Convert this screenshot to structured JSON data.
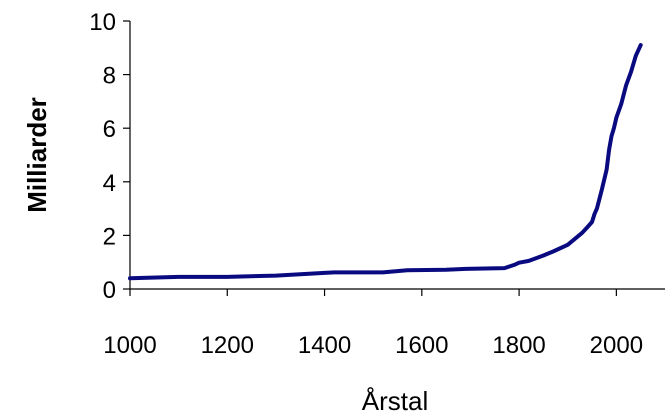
{
  "chart_data": {
    "type": "line",
    "title": "",
    "xlabel": "Årstal",
    "ylabel": "Milliarder",
    "xlim": [
      1000,
      2100
    ],
    "ylim": [
      0,
      10
    ],
    "xticks": [
      1000,
      1200,
      1400,
      1600,
      1800,
      2000
    ],
    "yticks": [
      0,
      2,
      4,
      6,
      8,
      10
    ],
    "grid": false,
    "legend": "none",
    "line_color": "#0a0a80",
    "series": [
      {
        "x": [
          1000,
          1100,
          1200,
          1300,
          1400,
          1420,
          1520,
          1570,
          1650,
          1690,
          1770,
          1790,
          1800,
          1820,
          1850,
          1870,
          1900,
          1920,
          1930,
          1940,
          1950,
          1955,
          1960,
          1970,
          1980,
          1985,
          1990,
          1995,
          2000,
          2010,
          2020,
          2030,
          2040,
          2050
        ],
        "y": [
          0.4,
          0.45,
          0.45,
          0.5,
          0.6,
          0.62,
          0.62,
          0.7,
          0.72,
          0.75,
          0.78,
          0.9,
          0.98,
          1.05,
          1.25,
          1.4,
          1.65,
          1.95,
          2.1,
          2.3,
          2.5,
          2.8,
          3.0,
          3.7,
          4.45,
          5.2,
          5.7,
          6.0,
          6.4,
          6.9,
          7.6,
          8.1,
          8.7,
          9.1
        ]
      }
    ]
  }
}
